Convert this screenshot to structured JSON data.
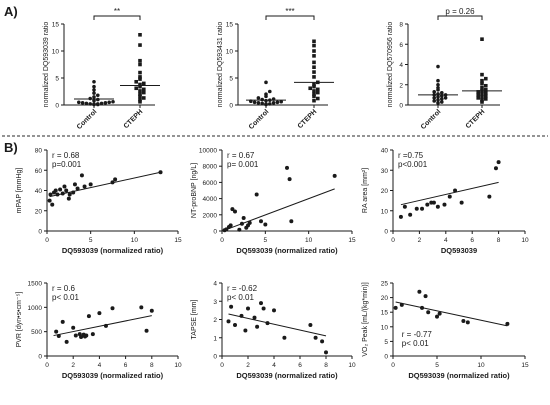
{
  "panel_labels": {
    "a": "A)",
    "b": "B)"
  },
  "chart_data": [
    {
      "type": "scatter",
      "id": "a1",
      "categories": [
        "Control",
        "CTEPH"
      ],
      "ylabel": "normalized DQ593039 ratio",
      "ylim": [
        0,
        15
      ],
      "yticks": [
        0,
        5,
        10,
        15
      ],
      "significance": "**",
      "series": [
        {
          "category": "Control",
          "marker": "circle",
          "mean": 1.1,
          "values": [
            0.1,
            0.1,
            0.2,
            0.2,
            0.2,
            0.3,
            0.3,
            0.4,
            0.4,
            0.5,
            0.5,
            0.6,
            0.8,
            1.0,
            1.2,
            1.5,
            1.8,
            2.2,
            2.8,
            3.4,
            4.3
          ]
        },
        {
          "category": "CTEPH",
          "marker": "square",
          "mean": 3.6,
          "values": [
            0.6,
            1.0,
            1.3,
            1.6,
            2.0,
            2.3,
            2.6,
            2.9,
            3.1,
            3.4,
            3.8,
            4.0,
            4.3,
            4.8,
            5.2,
            6.0,
            7.5,
            8.2,
            11.1,
            13.0
          ]
        }
      ]
    },
    {
      "type": "scatter",
      "id": "a2",
      "categories": [
        "Control",
        "CTEPH"
      ],
      "ylabel": "normalized DQ593431 ratio",
      "ylim": [
        0,
        15
      ],
      "yticks": [
        0,
        5,
        10,
        15
      ],
      "significance": "***",
      "series": [
        {
          "category": "Control",
          "marker": "circle",
          "mean": 0.9,
          "values": [
            0.1,
            0.2,
            0.2,
            0.3,
            0.4,
            0.4,
            0.5,
            0.5,
            0.6,
            0.7,
            0.8,
            0.9,
            1.0,
            1.1,
            1.3,
            1.6,
            2.0,
            2.5,
            4.2
          ]
        },
        {
          "category": "CTEPH",
          "marker": "square",
          "mean": 4.2,
          "values": [
            0.8,
            1.2,
            1.6,
            2.0,
            2.3,
            2.6,
            2.9,
            3.1,
            3.4,
            3.8,
            4.2,
            5.2,
            6.1,
            7.0,
            7.9,
            9.1,
            10.0,
            11.0,
            11.8
          ]
        }
      ]
    },
    {
      "type": "scatter",
      "id": "a3",
      "categories": [
        "Control",
        "CTEPH"
      ],
      "ylabel": "normalized DQ570956 ratio",
      "ylim": [
        0,
        8
      ],
      "yticks": [
        0,
        2,
        4,
        6,
        8
      ],
      "significance": "p = 0.26",
      "series": [
        {
          "category": "Control",
          "marker": "circle",
          "mean": 1.0,
          "values": [
            0.2,
            0.3,
            0.4,
            0.5,
            0.6,
            0.7,
            0.7,
            0.8,
            0.9,
            1.0,
            1.0,
            1.1,
            1.2,
            1.3,
            1.5,
            1.7,
            2.0,
            2.4,
            3.8
          ]
        },
        {
          "category": "CTEPH",
          "marker": "square",
          "mean": 1.4,
          "values": [
            0.3,
            0.5,
            0.6,
            0.7,
            0.8,
            0.9,
            1.0,
            1.1,
            1.2,
            1.3,
            1.4,
            1.5,
            1.7,
            1.9,
            2.1,
            2.4,
            2.6,
            3.0,
            6.5
          ]
        }
      ]
    },
    {
      "type": "scatter",
      "id": "b1",
      "xlabel": "DQ593039 (normalized ratio)",
      "ylabel": "mPAP [mmHg]",
      "xlim": [
        0,
        15
      ],
      "xticks": [
        0,
        5,
        10,
        15
      ],
      "ylim": [
        0,
        80
      ],
      "yticks": [
        0,
        20,
        40,
        60,
        80
      ],
      "stats": [
        "r = 0.68",
        "p=0.001"
      ],
      "regression": [
        [
          0.3,
          34
        ],
        [
          13,
          58
        ]
      ],
      "points": [
        [
          0.3,
          30
        ],
        [
          0.4,
          36
        ],
        [
          0.6,
          26
        ],
        [
          0.8,
          38
        ],
        [
          1.0,
          40
        ],
        [
          1.2,
          36
        ],
        [
          1.5,
          41
        ],
        [
          1.8,
          37
        ],
        [
          2.0,
          44
        ],
        [
          2.2,
          40
        ],
        [
          2.5,
          32
        ],
        [
          2.6,
          36
        ],
        [
          3.0,
          38
        ],
        [
          3.2,
          46
        ],
        [
          3.5,
          42
        ],
        [
          4.0,
          55
        ],
        [
          4.3,
          44
        ],
        [
          5.0,
          46
        ],
        [
          7.5,
          48
        ],
        [
          7.8,
          51
        ],
        [
          13,
          58
        ]
      ]
    },
    {
      "type": "scatter",
      "id": "b2",
      "xlabel": "DQ593039 (normalized ratio)",
      "ylabel": "NT-proBNP [ng/L]",
      "xlim": [
        0,
        15
      ],
      "xticks": [
        0,
        5,
        10,
        15
      ],
      "ylim": [
        0,
        10000
      ],
      "yticks": [
        0,
        2000,
        4000,
        6000,
        8000,
        10000
      ],
      "stats": [
        "r = 0.67",
        "p= 0.001"
      ],
      "regression": [
        [
          0.3,
          100
        ],
        [
          13,
          5200
        ]
      ],
      "points": [
        [
          0.3,
          100
        ],
        [
          0.5,
          200
        ],
        [
          0.8,
          500
        ],
        [
          1.0,
          700
        ],
        [
          1.2,
          2700
        ],
        [
          1.5,
          2400
        ],
        [
          2.0,
          150
        ],
        [
          2.3,
          900
        ],
        [
          2.5,
          1600
        ],
        [
          2.8,
          400
        ],
        [
          3.0,
          700
        ],
        [
          3.2,
          1000
        ],
        [
          4.0,
          4500
        ],
        [
          4.5,
          1200
        ],
        [
          5.0,
          800
        ],
        [
          7.5,
          7800
        ],
        [
          7.8,
          6400
        ],
        [
          8.0,
          1200
        ],
        [
          13,
          6800
        ]
      ]
    },
    {
      "type": "scatter",
      "id": "b3",
      "xlabel": "DQ593039",
      "ylabel": "RA area [mm²]",
      "xlim": [
        0,
        10
      ],
      "xticks": [
        0,
        2,
        4,
        6,
        8,
        10
      ],
      "ylim": [
        0,
        40
      ],
      "yticks": [
        0,
        10,
        20,
        30,
        40
      ],
      "stats": [
        "r =0.75",
        "p<0.001"
      ],
      "regression": [
        [
          0.6,
          13
        ],
        [
          8,
          24
        ]
      ],
      "points": [
        [
          0.6,
          7
        ],
        [
          0.9,
          12
        ],
        [
          1.3,
          8
        ],
        [
          1.8,
          11
        ],
        [
          2.2,
          11
        ],
        [
          2.6,
          13
        ],
        [
          2.9,
          14
        ],
        [
          3.1,
          14
        ],
        [
          3.4,
          12
        ],
        [
          3.9,
          13
        ],
        [
          4.3,
          17
        ],
        [
          4.7,
          20
        ],
        [
          5.2,
          14
        ],
        [
          7.3,
          17
        ],
        [
          7.8,
          31
        ],
        [
          8.0,
          34
        ]
      ]
    },
    {
      "type": "scatter",
      "id": "b4",
      "xlabel": "DQ593039 (normalized ratio)",
      "ylabel": "PVR [dyn•s•cm⁻⁵]",
      "xlim": [
        0,
        10
      ],
      "xticks": [
        0,
        2,
        4,
        6,
        8,
        10
      ],
      "ylim": [
        0,
        1500
      ],
      "yticks": [
        0,
        500,
        1000,
        1500
      ],
      "stats": [
        "r = 0.6",
        "p< 0.01"
      ],
      "regression": [
        [
          0.5,
          420
        ],
        [
          8,
          830
        ]
      ],
      "points": [
        [
          0.7,
          500
        ],
        [
          0.9,
          410
        ],
        [
          1.2,
          700
        ],
        [
          1.5,
          290
        ],
        [
          2.0,
          580
        ],
        [
          2.2,
          420
        ],
        [
          2.5,
          450
        ],
        [
          2.6,
          390
        ],
        [
          2.8,
          440
        ],
        [
          2.9,
          400
        ],
        [
          3.0,
          420
        ],
        [
          3.2,
          820
        ],
        [
          3.5,
          450
        ],
        [
          4.0,
          880
        ],
        [
          4.5,
          620
        ],
        [
          5.0,
          980
        ],
        [
          7.2,
          1000
        ],
        [
          7.6,
          520
        ],
        [
          8.0,
          930
        ]
      ]
    },
    {
      "type": "scatter",
      "id": "b5",
      "xlabel": "DQ593039 (normalized ratio)",
      "ylabel": "TAPSE [mm]",
      "xlim": [
        0,
        10
      ],
      "xticks": [
        0,
        2,
        4,
        6,
        8,
        10
      ],
      "ylim": [
        0,
        4
      ],
      "yticks": [
        0,
        1,
        2,
        3,
        4
      ],
      "stats": [
        "r = -0.62",
        "p< 0.01"
      ],
      "regression": [
        [
          0.5,
          2.3
        ],
        [
          8,
          1.1
        ]
      ],
      "points": [
        [
          0.5,
          1.9
        ],
        [
          0.7,
          2.7
        ],
        [
          1.0,
          1.7
        ],
        [
          1.5,
          2.2
        ],
        [
          1.8,
          1.4
        ],
        [
          2.0,
          2.6
        ],
        [
          2.5,
          2.1
        ],
        [
          2.7,
          1.6
        ],
        [
          3.0,
          2.9
        ],
        [
          3.2,
          2.6
        ],
        [
          3.5,
          1.8
        ],
        [
          4.0,
          2.5
        ],
        [
          4.8,
          1.0
        ],
        [
          6.8,
          1.7
        ],
        [
          7.2,
          1.0
        ],
        [
          7.7,
          0.8
        ],
        [
          8.0,
          0.2
        ]
      ]
    },
    {
      "type": "scatter",
      "id": "b6",
      "xlabel": "DQ593039 (normalized ratio)",
      "ylabel": "VO₂ Peak [mL/(kg*min)]",
      "xlim": [
        0,
        15
      ],
      "xticks": [
        0,
        5,
        10,
        15
      ],
      "ylim": [
        0,
        25
      ],
      "yticks": [
        0,
        5,
        10,
        15,
        20,
        25
      ],
      "stats": [
        "r = -0.77",
        "p< 0.01"
      ],
      "regression": [
        [
          0.3,
          18.5
        ],
        [
          13,
          10.3
        ]
      ],
      "points": [
        [
          0.3,
          16.5
        ],
        [
          1.0,
          17.5
        ],
        [
          3.0,
          22
        ],
        [
          3.3,
          16.5
        ],
        [
          3.7,
          20.5
        ],
        [
          4.0,
          15
        ],
        [
          5.0,
          13.5
        ],
        [
          5.3,
          14.5
        ],
        [
          8.0,
          12
        ],
        [
          8.5,
          11.5
        ],
        [
          13,
          11
        ]
      ]
    }
  ]
}
